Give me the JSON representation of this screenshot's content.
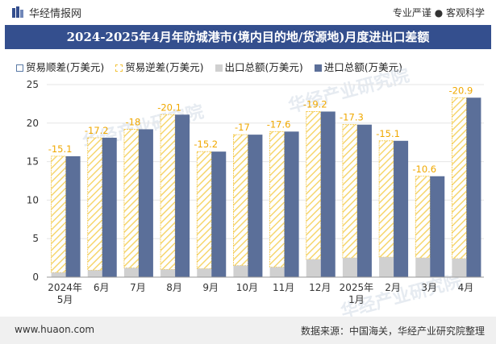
{
  "header": {
    "brand": "华经情报网",
    "tags": "专业严谨 ● 客观科学"
  },
  "title": "2024-2025年4月年防城港市(境内目的地/货源地)月度进出口差额",
  "legend": [
    {
      "label": "贸易顺差(万美元)",
      "color": "#5a7aa6"
    },
    {
      "label": "贸易逆差(万美元)",
      "color": "#f3c33c"
    },
    {
      "label": "出口总额(万美元)",
      "color": "#d0d0d0"
    },
    {
      "label": "进口总额(万美元)",
      "color": "#5b6f99"
    }
  ],
  "chart_data": {
    "type": "bar",
    "categories": [
      "2024年5月",
      "6月",
      "7月",
      "8月",
      "9月",
      "10月",
      "11月",
      "12月",
      "2025年1月",
      "2月",
      "3月",
      "4月"
    ],
    "ylim": [
      0,
      25
    ],
    "yticks": [
      0,
      5,
      10,
      15,
      20,
      25
    ],
    "series": [
      {
        "name": "贸易顺差(万美元)",
        "values": [
          0,
          0,
          0,
          0,
          0,
          0,
          0,
          0,
          0,
          0,
          0,
          0
        ]
      },
      {
        "name": "贸易逆差(万美元)",
        "values": [
          -15.1,
          -17.2,
          -18,
          -20.1,
          -15.2,
          -17,
          -17.6,
          -19.2,
          -17.3,
          -15.1,
          -10.6,
          -20.9
        ]
      },
      {
        "name": "出口总额(万美元)",
        "values": [
          0.6,
          0.9,
          1.2,
          1.0,
          1.1,
          1.5,
          1.3,
          2.3,
          2.5,
          2.6,
          2.5,
          2.4
        ]
      },
      {
        "name": "进口总额(万美元)",
        "values": [
          15.7,
          18.1,
          19.2,
          21.1,
          16.3,
          18.5,
          18.9,
          21.5,
          19.8,
          17.7,
          13.1,
          23.3
        ]
      }
    ],
    "colors": {
      "surplus": "#5a7aa6",
      "deficit": "#f3c33c",
      "export": "#d0d0d0",
      "import": "#5b6f99"
    },
    "grid": true
  },
  "footer": {
    "site": "www.huaon.com",
    "source": "数据来源：中国海关，华经产业研究院整理"
  }
}
